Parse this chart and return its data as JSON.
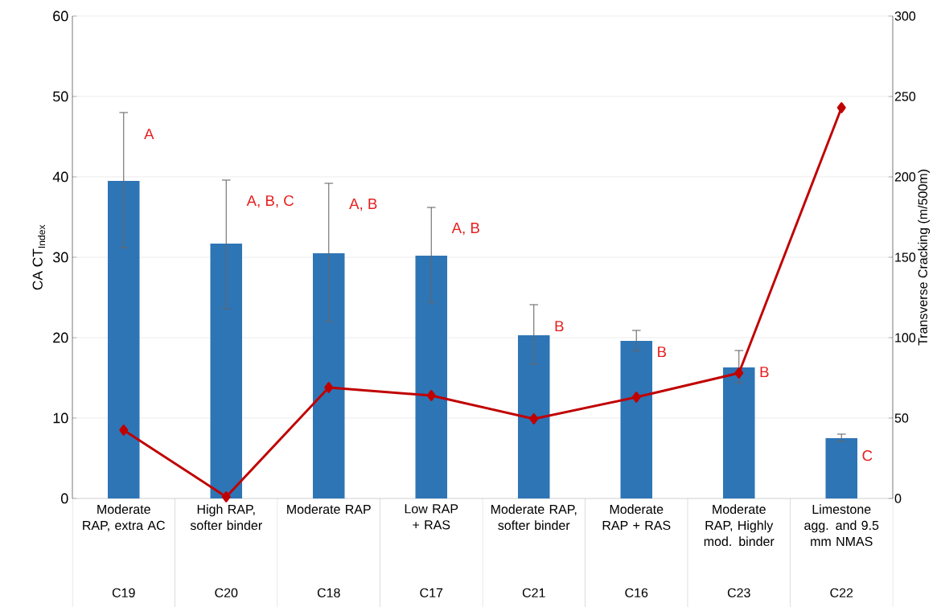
{
  "chart_data": {
    "type": "bar",
    "ylabel": "CA CT$_{Index}$",
    "y2label": "Transverse Cracking (m/500m)",
    "categories": [
      "Moderate RAP, extra AC",
      "High RAP, softer binder",
      "Moderate RAP",
      "Low RAP + RAS",
      "Moderate RAP, softer binder",
      "Moderate RAP + RAS",
      "Moderate RAP, Highly mod. binder",
      "Limestone agg. and 9.5 mm NMAS"
    ],
    "ylim": [
      0,
      60
    ],
    "yticks": [
      0,
      10,
      20,
      30,
      40,
      50,
      60
    ],
    "y2lim": [
      0,
      300
    ],
    "y2ticks": [
      0,
      50,
      100,
      150,
      200,
      250,
      300
    ],
    "grid": "y",
    "marker": "diamond",
    "series": [
      {
        "color": "#2e75b6",
        "values": [
          39.5,
          31.7,
          30.5,
          30.2,
          20.3,
          19.6,
          16.3,
          7.5
        ],
        "errors": [
          [
            31.2,
            48
          ],
          [
            23.6,
            39.6
          ],
          [
            22,
            39.2
          ],
          [
            24.4,
            36.2
          ],
          [
            16.7,
            24.1
          ],
          [
            18.4,
            20.9
          ],
          [
            14.4,
            18.4
          ],
          [
            7.1,
            8.0
          ]
        ]
      },
      {
        "type": "line",
        "axis": "y2",
        "color": "#c00000",
        "values": [
          42.5,
          1,
          69,
          64,
          49.5,
          63,
          78,
          243
        ]
      }
    ],
    "annotations": [
      "A",
      "A, B, C",
      "A, B",
      "A, B",
      "B",
      "B",
      "B",
      "C",
      "C19",
      "C20",
      "C18",
      "C17",
      "C21",
      "C16",
      "C23",
      "C22"
    ]
  }
}
